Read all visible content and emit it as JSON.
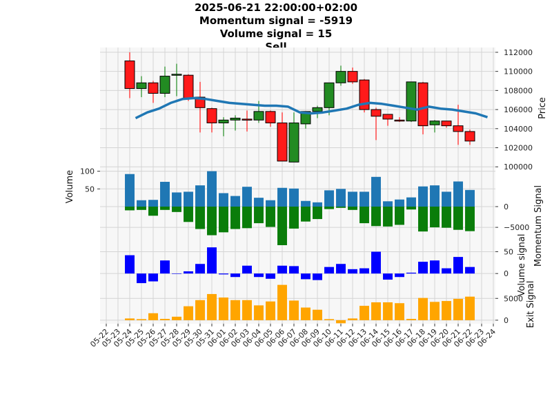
{
  "chart_data": {
    "type": "candlestick",
    "title_lines": [
      "2025-06-21 22:00:00+02:00",
      "Momentum signal = -5919",
      "Volume signal = 15",
      "Sell"
    ],
    "dates": [
      "05-22",
      "05-23",
      "05-24",
      "05-25",
      "05-26",
      "05-27",
      "05-28",
      "05-29",
      "05-30",
      "05-31",
      "06-01",
      "06-02",
      "06-03",
      "06-04",
      "06-05",
      "06-06",
      "06-07",
      "06-08",
      "06-09",
      "06-10",
      "06-11",
      "06-12",
      "06-13",
      "06-14",
      "06-15",
      "06-16",
      "06-17",
      "06-18",
      "06-19",
      "06-20",
      "06-21",
      "06-22",
      "06-23",
      "06-24"
    ],
    "price_panel": {
      "ylabel": "Price",
      "ylim": [
        99800,
        112500
      ],
      "ticks": [
        100000,
        102000,
        104000,
        106000,
        108000,
        110000,
        112000
      ],
      "candles": [
        {
          "d": "05-24",
          "o": 111100,
          "h": 112000,
          "l": 107200,
          "c": 108200
        },
        {
          "d": "05-25",
          "o": 108200,
          "h": 109500,
          "l": 107300,
          "c": 108800
        },
        {
          "d": "05-26",
          "o": 108800,
          "h": 109000,
          "l": 106700,
          "c": 107700
        },
        {
          "d": "05-27",
          "o": 107700,
          "h": 110500,
          "l": 107300,
          "c": 109500
        },
        {
          "d": "05-28",
          "o": 109600,
          "h": 110800,
          "l": 107400,
          "c": 109700
        },
        {
          "d": "05-29",
          "o": 109600,
          "h": 109700,
          "l": 106900,
          "c": 107200
        },
        {
          "d": "05-30",
          "o": 107300,
          "h": 108900,
          "l": 103600,
          "c": 106200
        },
        {
          "d": "05-31",
          "o": 106100,
          "h": 106200,
          "l": 103600,
          "c": 104600
        },
        {
          "d": "06-01",
          "o": 104600,
          "h": 105200,
          "l": 103200,
          "c": 104900
        },
        {
          "d": "06-02",
          "o": 104900,
          "h": 105400,
          "l": 103800,
          "c": 105100
        },
        {
          "d": "06-03",
          "o": 105000,
          "h": 105900,
          "l": 103700,
          "c": 104900
        },
        {
          "d": "06-04",
          "o": 104900,
          "h": 106900,
          "l": 104600,
          "c": 105800
        },
        {
          "d": "06-05",
          "o": 105800,
          "h": 105900,
          "l": 104200,
          "c": 104600
        },
        {
          "d": "06-06",
          "o": 104600,
          "h": 105700,
          "l": 100600,
          "c": 100600
        },
        {
          "d": "06-07",
          "o": 100500,
          "h": 105700,
          "l": 100500,
          "c": 104600
        },
        {
          "d": "06-08",
          "o": 104500,
          "h": 105800,
          "l": 104000,
          "c": 105800
        },
        {
          "d": "06-09",
          "o": 105800,
          "h": 106400,
          "l": 105100,
          "c": 106200
        },
        {
          "d": "06-10",
          "o": 106200,
          "h": 108800,
          "l": 105400,
          "c": 108800
        },
        {
          "d": "06-11",
          "o": 108800,
          "h": 110600,
          "l": 108500,
          "c": 110000
        },
        {
          "d": "06-12",
          "o": 110000,
          "h": 110400,
          "l": 108700,
          "c": 108900
        },
        {
          "d": "06-13",
          "o": 109100,
          "h": 109200,
          "l": 105700,
          "c": 106000
        },
        {
          "d": "06-14",
          "o": 106000,
          "h": 106200,
          "l": 102800,
          "c": 105300
        },
        {
          "d": "06-15",
          "o": 105500,
          "h": 105500,
          "l": 104300,
          "c": 105000
        },
        {
          "d": "06-16",
          "o": 104900,
          "h": 105200,
          "l": 104700,
          "c": 104800
        },
        {
          "d": "06-17",
          "o": 104800,
          "h": 108900,
          "l": 104700,
          "c": 108900
        },
        {
          "d": "06-18",
          "o": 108800,
          "h": 108900,
          "l": 103400,
          "c": 104300
        },
        {
          "d": "06-19",
          "o": 104400,
          "h": 104900,
          "l": 103600,
          "c": 104800
        },
        {
          "d": "06-20",
          "o": 104800,
          "h": 104800,
          "l": 104100,
          "c": 104300
        },
        {
          "d": "06-21",
          "o": 104300,
          "h": 106500,
          "l": 102300,
          "c": 103700
        },
        {
          "d": "06-22",
          "o": 103700,
          "h": 103900,
          "l": 102300,
          "c": 102700
        }
      ],
      "moving_average": [
        105100,
        105700,
        106100,
        106700,
        107100,
        107200,
        107100,
        106900,
        106700,
        106600,
        106500,
        106400,
        106400,
        106300,
        105700,
        105600,
        105700,
        105900,
        106100,
        106500,
        106700,
        106600,
        106400,
        106200,
        106000,
        106300,
        106100,
        106000,
        105800,
        105600,
        105200
      ]
    },
    "volume_panel": {
      "ylabel": "Volume",
      "ticks": [
        50,
        100
      ],
      "ylim": [
        0,
        107
      ],
      "values": [
        92,
        18,
        19,
        70,
        40,
        42,
        60,
        100,
        38,
        30,
        56,
        25,
        18,
        53,
        51,
        16,
        12,
        46,
        50,
        42,
        42,
        84,
        15,
        20,
        26,
        57,
        60,
        42,
        71,
        47
      ]
    },
    "momentum_panel": {
      "ylabel": "Momentum Signal",
      "ticks": [
        0,
        -5000
      ],
      "ylim": [
        -9300,
        0
      ],
      "values": [
        -900,
        -800,
        -2200,
        -800,
        -1300,
        -3700,
        -5400,
        -6900,
        -6200,
        -5400,
        -5200,
        -4000,
        -4900,
        -9300,
        -5300,
        -3600,
        -3000,
        -600,
        -300,
        -800,
        -4000,
        -4700,
        -4800,
        -4400,
        -700,
        -6000,
        -5000,
        -5100,
        -5600,
        -5919
      ]
    },
    "volume_signal_panel": {
      "ylabel": "Volume signal",
      "ticks": [
        0,
        50
      ],
      "ylim": [
        -25,
        65
      ],
      "values": [
        42,
        -22,
        -18,
        30,
        -1,
        5,
        22,
        60,
        -2,
        -8,
        18,
        -8,
        -12,
        18,
        17,
        -13,
        -15,
        15,
        22,
        10,
        12,
        50,
        -14,
        -8,
        2,
        27,
        30,
        12,
        38,
        15
      ]
    },
    "exit_panel": {
      "ylabel": "Exit Signal",
      "ticks": [
        0,
        5000
      ],
      "ylim": [
        -800,
        8200
      ],
      "values": [
        400,
        250,
        1600,
        300,
        800,
        3200,
        4600,
        6000,
        5200,
        4600,
        4600,
        3400,
        4300,
        8100,
        4500,
        2900,
        2400,
        250,
        -700,
        400,
        3300,
        4100,
        4100,
        3900,
        300,
        5100,
        4200,
        4400,
        4900,
        5400
      ]
    },
    "colors": {
      "up": "#228b22",
      "down": "#ff1a1a",
      "ma": "#1f77b4",
      "volume": "#1f77b4",
      "momentum": "#0a7d0a",
      "volume_signal": "#0000ff",
      "exit": "#ffa500"
    },
    "grid": true
  }
}
